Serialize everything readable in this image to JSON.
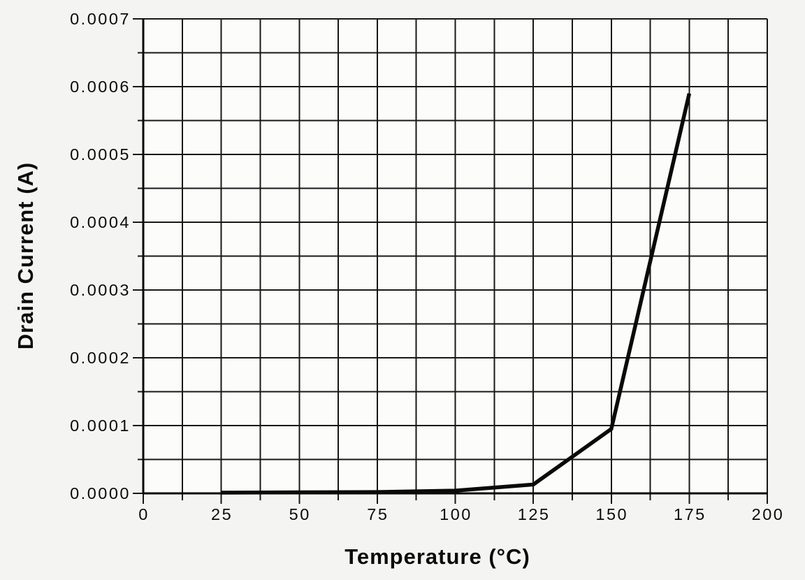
{
  "chart_data": {
    "type": "line",
    "title": "",
    "xlabel": "Temperature (°C)",
    "ylabel": "Drain Current (A)",
    "series": [
      {
        "name": "drain-current",
        "x": [
          25,
          50,
          75,
          100,
          125,
          150,
          175
        ],
        "y": [
          1e-06,
          1.5e-06,
          2e-06,
          4e-06,
          1.3e-05,
          9.5e-05,
          0.00059
        ]
      }
    ],
    "xlim": [
      0,
      200
    ],
    "ylim": [
      0,
      0.0007
    ],
    "x_tick_values": [
      0,
      25,
      50,
      75,
      100,
      125,
      150,
      175,
      200
    ],
    "x_tick_labels": [
      "0",
      "25",
      "50",
      "75",
      "100",
      "125",
      "150",
      "175",
      "200"
    ],
    "x_minor_step": 12.5,
    "y_tick_values": [
      0,
      0.0001,
      0.0002,
      0.0003,
      0.0004,
      0.0005,
      0.0006,
      0.0007
    ],
    "y_tick_labels": [
      "0.0000",
      "0.0001",
      "0.0002",
      "0.0003",
      "0.0004",
      "0.0005",
      "0.0006",
      "0.0007"
    ],
    "y_minor_step": 5e-05,
    "grid": "minor-and-major",
    "legend": "none",
    "colors": {
      "line": "#0a0a0a",
      "grid": "#181818",
      "axis": "#0a0a0a",
      "page_background": "#f4f4f2",
      "plot_background": "#fcfcfb"
    }
  }
}
